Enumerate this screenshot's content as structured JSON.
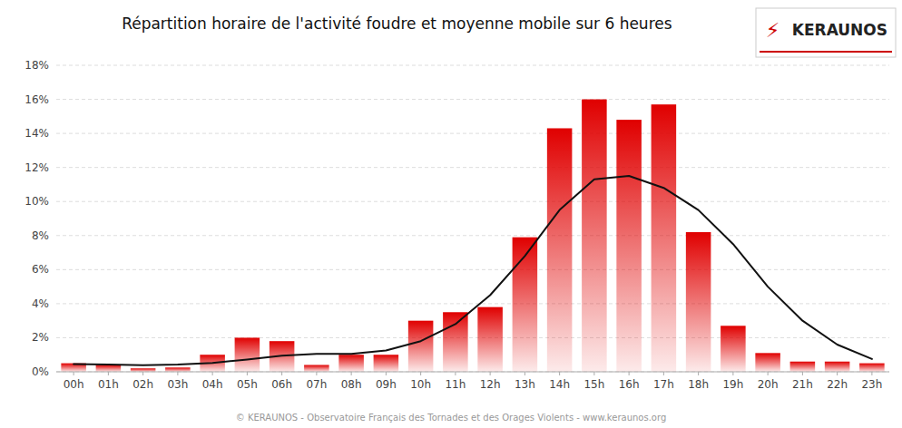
{
  "chart_data": {
    "type": "bar",
    "title": "Répartition horaire de l'activité foudre et moyenne mobile sur 6 heures",
    "annotations": [
      "© KERAUNOS - Observatoire Français des Tornades et des Orages Violents - www.keraunos.org",
      "KERAUNOS",
      "⚡"
    ],
    "categories": [
      "00h",
      "01h",
      "02h",
      "03h",
      "04h",
      "05h",
      "06h",
      "07h",
      "08h",
      "09h",
      "10h",
      "11h",
      "12h",
      "13h",
      "14h",
      "15h",
      "16h",
      "17h",
      "18h",
      "19h",
      "20h",
      "21h",
      "22h",
      "23h"
    ],
    "series": [
      {
        "type": "bar",
        "color": "#e00000",
        "values": [
          0.5,
          0.4,
          0.2,
          0.25,
          1.0,
          2.0,
          1.8,
          0.4,
          1.0,
          1.0,
          3.0,
          3.5,
          3.8,
          7.9,
          14.3,
          16.0,
          14.8,
          15.7,
          8.2,
          2.7,
          1.1,
          0.6,
          0.6,
          0.5
        ]
      },
      {
        "type": "line",
        "color": "#111111",
        "values": [
          0.45,
          0.42,
          0.38,
          0.42,
          0.52,
          0.72,
          0.95,
          1.05,
          1.05,
          1.25,
          1.8,
          2.8,
          4.5,
          6.8,
          9.5,
          11.3,
          11.5,
          10.8,
          9.5,
          7.5,
          5.0,
          3.0,
          1.6,
          0.75
        ]
      }
    ],
    "ylim": [
      0,
      18
    ],
    "yticks": [
      {
        "value": 0,
        "label": "0%"
      },
      {
        "value": 2,
        "label": "2%"
      },
      {
        "value": 4,
        "label": "4%"
      },
      {
        "value": 6,
        "label": "6%"
      },
      {
        "value": 8,
        "label": "8%"
      },
      {
        "value": 10,
        "label": "10%"
      },
      {
        "value": 12,
        "label": "12%"
      },
      {
        "value": 14,
        "label": "14%"
      },
      {
        "value": 16,
        "label": "16%"
      },
      {
        "value": 18,
        "label": "18%"
      }
    ],
    "grid": true
  }
}
